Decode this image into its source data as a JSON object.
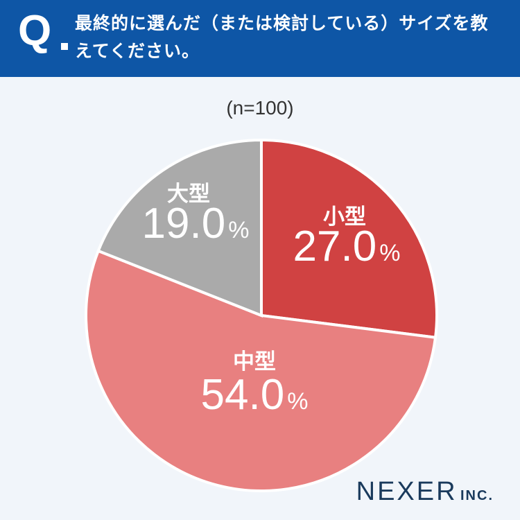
{
  "header": {
    "q_mark": "Q",
    "question": "最終的に選んだ（または検討している）サイズを教えてください。"
  },
  "n_label": "(n=100)",
  "brand": {
    "main": "NEXER",
    "sub": "INC."
  },
  "colors": {
    "header": "#0e56a6",
    "small": "#d04242",
    "medium": "#e88080",
    "large": "#aaaaaa"
  },
  "chart_data": {
    "type": "pie",
    "title": "",
    "slices": [
      {
        "label": "小型",
        "value": 27.0,
        "value_text": "27.0",
        "unit": "%",
        "color": "#d04242"
      },
      {
        "label": "中型",
        "value": 54.0,
        "value_text": "54.0",
        "unit": "%",
        "color": "#e88080"
      },
      {
        "label": "大型",
        "value": 19.0,
        "value_text": "19.0",
        "unit": "%",
        "color": "#aaaaaa"
      }
    ]
  }
}
